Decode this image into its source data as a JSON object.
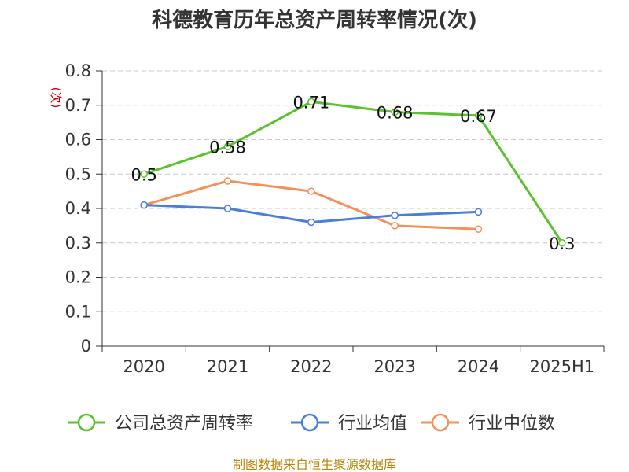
{
  "chart_data": {
    "type": "line",
    "title": "科德教育历年总资产周转率情况(次)",
    "y_unit": "(次)",
    "categories": [
      "2020",
      "2021",
      "2022",
      "2023",
      "2024",
      "2025H1"
    ],
    "ylim": [
      0,
      0.8
    ],
    "yticks": [
      "0",
      "0.1",
      "0.2",
      "0.3",
      "0.4",
      "0.5",
      "0.6",
      "0.7",
      "0.8"
    ],
    "grid": true,
    "legend_position": "bottom",
    "series": [
      {
        "name": "公司总资产周转率",
        "color": "#5cc12e",
        "values": [
          0.5,
          0.58,
          0.71,
          0.68,
          0.67,
          0.3
        ],
        "labels": [
          "0.5",
          "0.58",
          "0.71",
          "0.68",
          "0.67",
          "0.3"
        ]
      },
      {
        "name": "行业均值",
        "color": "#4a7fd8",
        "values": [
          0.41,
          0.4,
          0.36,
          0.38,
          0.39,
          null
        ]
      },
      {
        "name": "行业中位数",
        "color": "#f5905a",
        "values": [
          0.41,
          0.48,
          0.45,
          0.35,
          0.34,
          null
        ]
      }
    ]
  },
  "source_text": "制图数据来自恒生聚源数据库"
}
